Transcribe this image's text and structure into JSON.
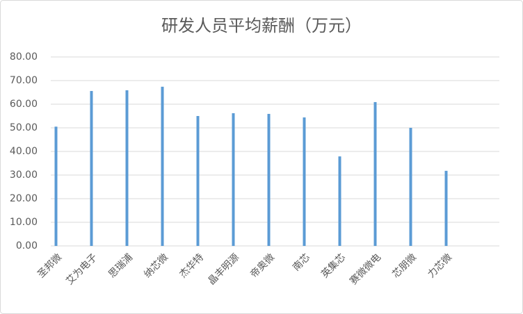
{
  "chart_data": {
    "type": "bar",
    "title": "研发人员平均薪酬（万元）",
    "categories": [
      "圣邦微",
      "艾为电子",
      "思瑞浦",
      "纳芯微",
      "杰华特",
      "晶丰明源",
      "帝奥微",
      "南芯",
      "英集芯",
      "赛微微电",
      "芯朋微",
      "力芯微",
      null
    ],
    "values": [
      50.5,
      65.6,
      65.9,
      67.4,
      55.0,
      56.2,
      55.9,
      54.4,
      37.9,
      60.9,
      50.0,
      31.8,
      null
    ],
    "color": "#5b9bd5",
    "ylim": [
      0,
      80
    ],
    "yticks": [
      {
        "value": 0,
        "label": "0.00"
      },
      {
        "value": 10,
        "label": "10.00"
      },
      {
        "value": 20,
        "label": "20.00"
      },
      {
        "value": 30,
        "label": "30.00"
      },
      {
        "value": 40,
        "label": "40.00"
      },
      {
        "value": 50,
        "label": "50.00"
      },
      {
        "value": 60,
        "label": "60.00"
      },
      {
        "value": 70,
        "label": "70.00"
      },
      {
        "value": 80,
        "label": "80.00"
      }
    ],
    "grid": true
  }
}
